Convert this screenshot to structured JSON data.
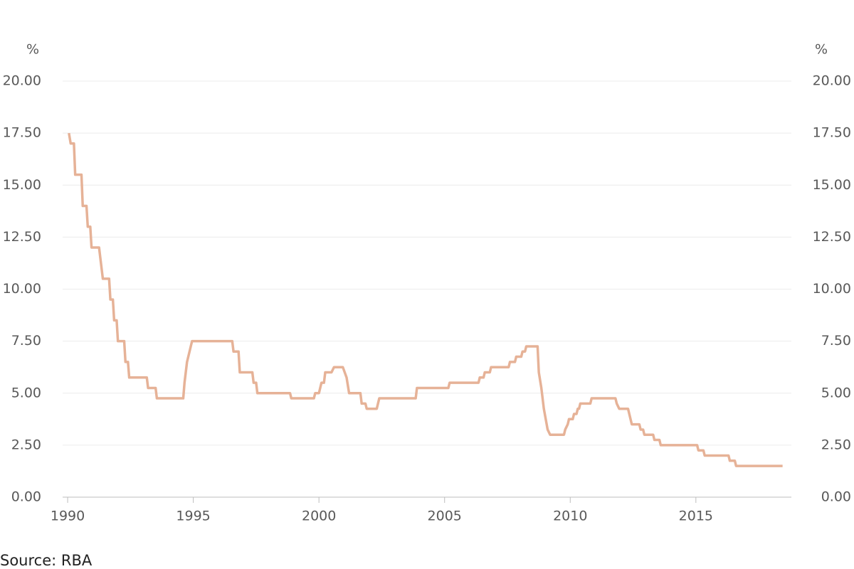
{
  "chart_data": {
    "type": "line",
    "ylabel": "%",
    "y2label": "%",
    "source": "Source: RBA",
    "color": "#e6b297",
    "grid": true,
    "x": [
      1990.05,
      1990.12,
      1990.25,
      1990.3,
      1990.55,
      1990.6,
      1990.75,
      1990.8,
      1990.9,
      1990.95,
      1991.25,
      1991.4,
      1991.65,
      1991.7,
      1991.8,
      1991.85,
      1991.95,
      1992.0,
      1992.25,
      1992.3,
      1992.4,
      1992.45,
      1993.15,
      1993.2,
      1993.5,
      1993.55,
      1994.6,
      1994.65,
      1994.75,
      1994.95,
      1996.55,
      1996.6,
      1996.8,
      1996.85,
      1997.35,
      1997.4,
      1997.5,
      1997.55,
      1998.85,
      1998.9,
      1999.8,
      1999.85,
      2000.0,
      2000.1,
      2000.2,
      2000.25,
      2000.5,
      2000.6,
      2000.95,
      2001.1,
      2001.2,
      2001.65,
      2001.7,
      2001.85,
      2001.9,
      2002.3,
      2002.4,
      2003.85,
      2003.9,
      2005.15,
      2005.2,
      2006.35,
      2006.4,
      2006.55,
      2006.6,
      2006.8,
      2006.85,
      2007.55,
      2007.6,
      2007.8,
      2007.85,
      2008.05,
      2008.1,
      2008.2,
      2008.25,
      2008.7,
      2008.75,
      2008.85,
      2008.95,
      2009.1,
      2009.2,
      2009.75,
      2009.8,
      2009.9,
      2009.95,
      2010.1,
      2010.15,
      2010.25,
      2010.3,
      2010.35,
      2010.4,
      2010.8,
      2010.85,
      2011.8,
      2011.85,
      2011.95,
      2012.3,
      2012.4,
      2012.45,
      2012.75,
      2012.8,
      2012.9,
      2012.95,
      2013.3,
      2013.35,
      2013.55,
      2013.6,
      2015.05,
      2015.1,
      2015.3,
      2015.35,
      2016.3,
      2016.35,
      2016.55,
      2016.6,
      2018.45
    ],
    "values": [
      17.5,
      17.0,
      17.0,
      15.5,
      15.5,
      14.0,
      14.0,
      13.0,
      13.0,
      12.0,
      12.0,
      10.5,
      10.5,
      9.5,
      9.5,
      8.5,
      8.5,
      7.5,
      7.5,
      6.5,
      6.5,
      5.75,
      5.75,
      5.25,
      5.25,
      4.75,
      4.75,
      5.5,
      6.5,
      7.5,
      7.5,
      7.0,
      7.0,
      6.0,
      6.0,
      5.5,
      5.5,
      5.0,
      5.0,
      4.75,
      4.75,
      5.0,
      5.0,
      5.5,
      5.5,
      6.0,
      6.0,
      6.25,
      6.25,
      5.75,
      5.0,
      5.0,
      4.5,
      4.5,
      4.25,
      4.25,
      4.75,
      4.75,
      5.25,
      5.25,
      5.5,
      5.5,
      5.75,
      5.75,
      6.0,
      6.0,
      6.25,
      6.25,
      6.5,
      6.5,
      6.75,
      6.75,
      7.0,
      7.0,
      7.25,
      7.25,
      6.0,
      5.25,
      4.25,
      3.25,
      3.0,
      3.0,
      3.25,
      3.5,
      3.75,
      3.75,
      4.0,
      4.0,
      4.25,
      4.25,
      4.5,
      4.5,
      4.75,
      4.75,
      4.5,
      4.25,
      4.25,
      3.75,
      3.5,
      3.5,
      3.25,
      3.25,
      3.0,
      3.0,
      2.75,
      2.75,
      2.5,
      2.5,
      2.25,
      2.25,
      2.0,
      2.0,
      1.75,
      1.75,
      1.5,
      1.5
    ],
    "xlim": [
      1989.8,
      2018.8
    ],
    "xticks": [
      1990,
      1995,
      2000,
      2005,
      2010,
      2015
    ],
    "ylim": [
      0,
      20
    ],
    "yticks": [
      {
        "value": 0,
        "label": "0.00"
      },
      {
        "value": 2.5,
        "label": "2.50"
      },
      {
        "value": 5,
        "label": "5.00"
      },
      {
        "value": 7.5,
        "label": "7.50"
      },
      {
        "value": 10,
        "label": "10.00"
      },
      {
        "value": 12.5,
        "label": "12.50"
      },
      {
        "value": 15,
        "label": "15.00"
      },
      {
        "value": 17.5,
        "label": "17.50"
      },
      {
        "value": 20,
        "label": "20.00"
      }
    ],
    "y2lim": [
      0,
      20
    ],
    "y2ticks": [
      {
        "value": 0,
        "label": "0.00"
      },
      {
        "value": 2.5,
        "label": "2.50"
      },
      {
        "value": 5,
        "label": "5.00"
      },
      {
        "value": 7.5,
        "label": "7.50"
      },
      {
        "value": 10,
        "label": "10.00"
      },
      {
        "value": 12.5,
        "label": "12.50"
      },
      {
        "value": 15,
        "label": "15.00"
      },
      {
        "value": 17.5,
        "label": "17.50"
      },
      {
        "value": 20,
        "label": "20.00"
      }
    ]
  }
}
